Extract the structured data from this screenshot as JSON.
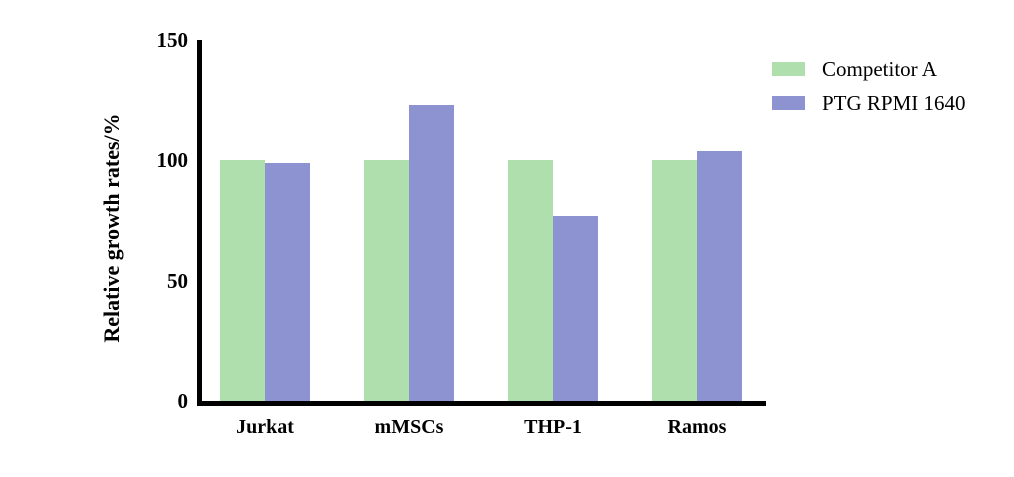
{
  "figure": {
    "background": "#ffffff",
    "axis_color": "#000000"
  },
  "chart_data": {
    "type": "bar",
    "title": "",
    "xlabel": "",
    "ylabel": "Relative growth rates/%",
    "categories": [
      "Jurkat",
      "mMSCs",
      "THP-1",
      "Ramos"
    ],
    "series": [
      {
        "name": "Competitor A",
        "color": "#aedfac",
        "values": [
          100,
          100,
          100,
          100
        ]
      },
      {
        "name": "PTG RPMI 1640",
        "color": "#8d93d0",
        "values": [
          99,
          123,
          77,
          104
        ]
      }
    ],
    "ylim": [
      0,
      150
    ],
    "yticks": [
      0,
      50,
      100,
      150
    ],
    "grid": false,
    "legend_position": "top-right"
  }
}
